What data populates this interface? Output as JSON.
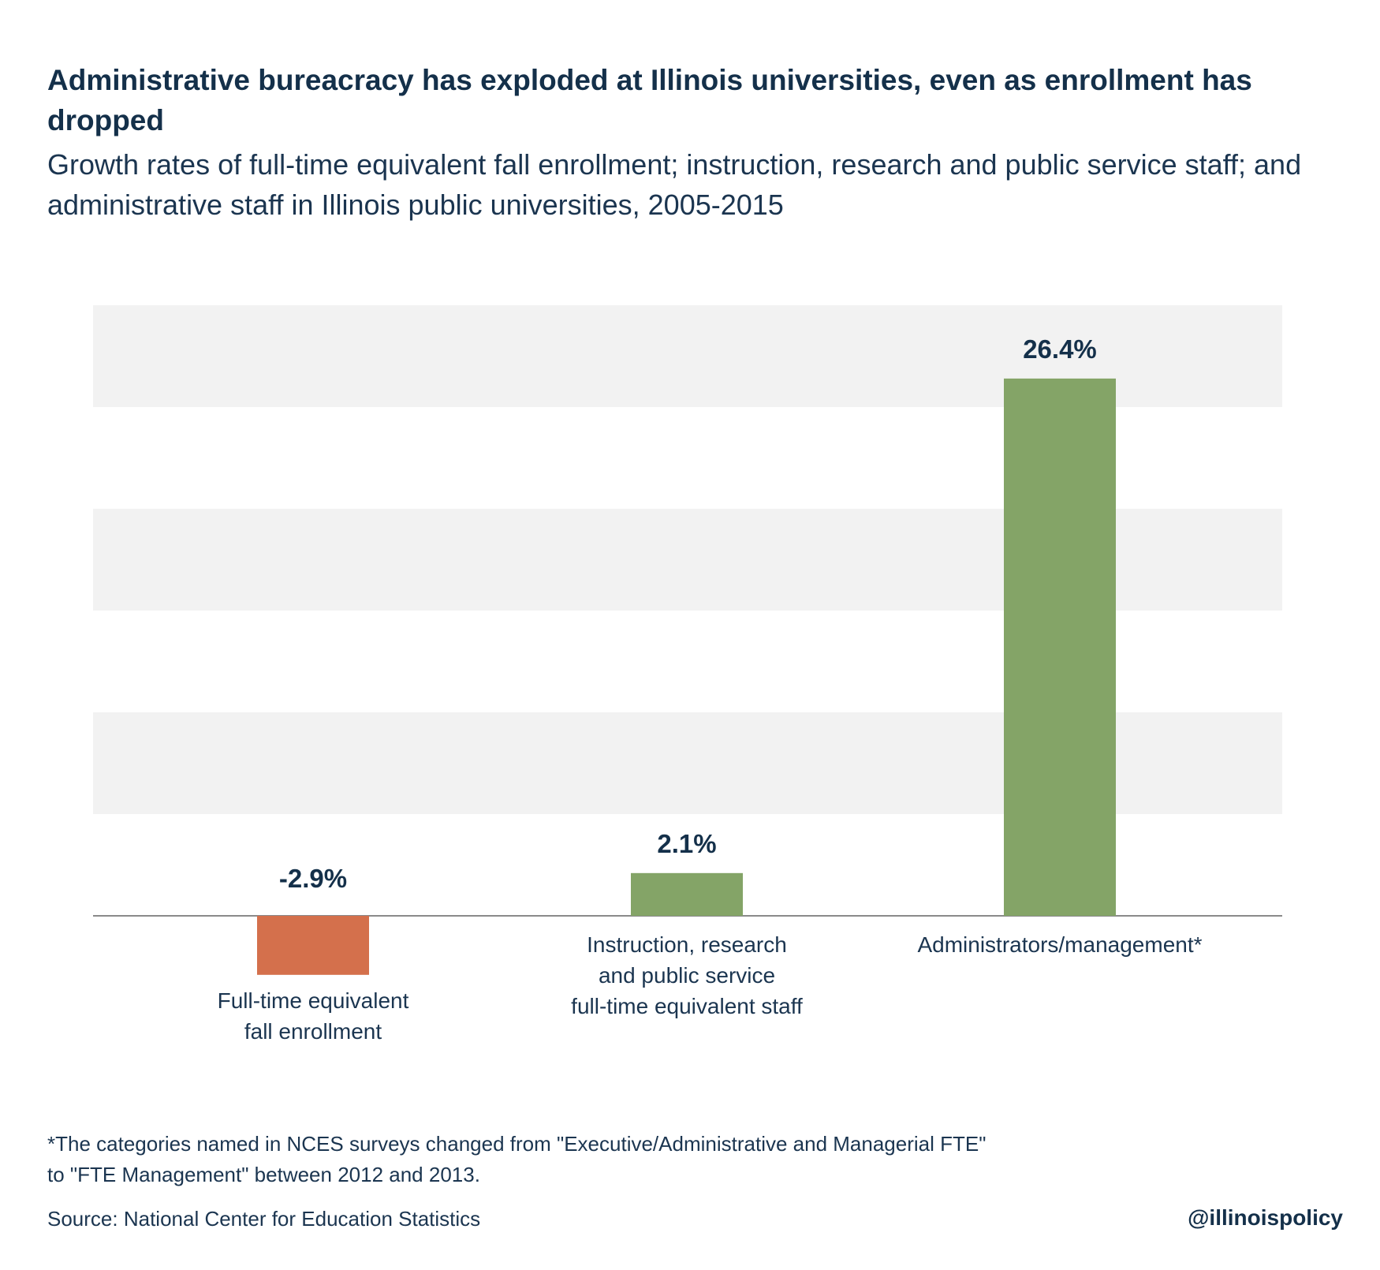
{
  "header": {
    "title": "Administrative bureacracy has exploded at Illinois universities, even as enrollment has dropped",
    "subtitle": "Growth rates of full-time equivalent fall enrollment; instruction, research and public service staff; and administrative staff in Illinois public universities, 2005-2015"
  },
  "chart_data": {
    "type": "bar",
    "title": "Administrative bureacracy has exploded at Illinois universities, even as enrollment has dropped",
    "subtitle": "Growth rates of full-time equivalent fall enrollment; instruction, research and public service staff; and administrative staff in Illinois public universities, 2005-2015",
    "categories": [
      [
        "Full-time equivalent",
        "fall enrollment"
      ],
      [
        "Instruction, research",
        "and public service",
        "full-time equivalent staff"
      ],
      [
        "Administrators/management*"
      ]
    ],
    "values": [
      -2.9,
      2.1,
      26.4
    ],
    "value_labels": [
      "-2.9%",
      "2.1%",
      "26.4%"
    ],
    "colors": [
      "#d4704c",
      "#84a467",
      "#84a467"
    ],
    "ylim": [
      -5,
      30
    ],
    "grid": "alternating horizontal bands",
    "legend": "none",
    "xlabel": "",
    "ylabel": ""
  },
  "footer": {
    "footnote_line1": "*The categories named in NCES surveys changed from \"Executive/Administrative and Managerial FTE\"",
    "footnote_line2": "to \"FTE Management\" between 2012 and 2013.",
    "source": "Source:  National Center for Education Statistics",
    "handle": "@illinoispolicy"
  }
}
